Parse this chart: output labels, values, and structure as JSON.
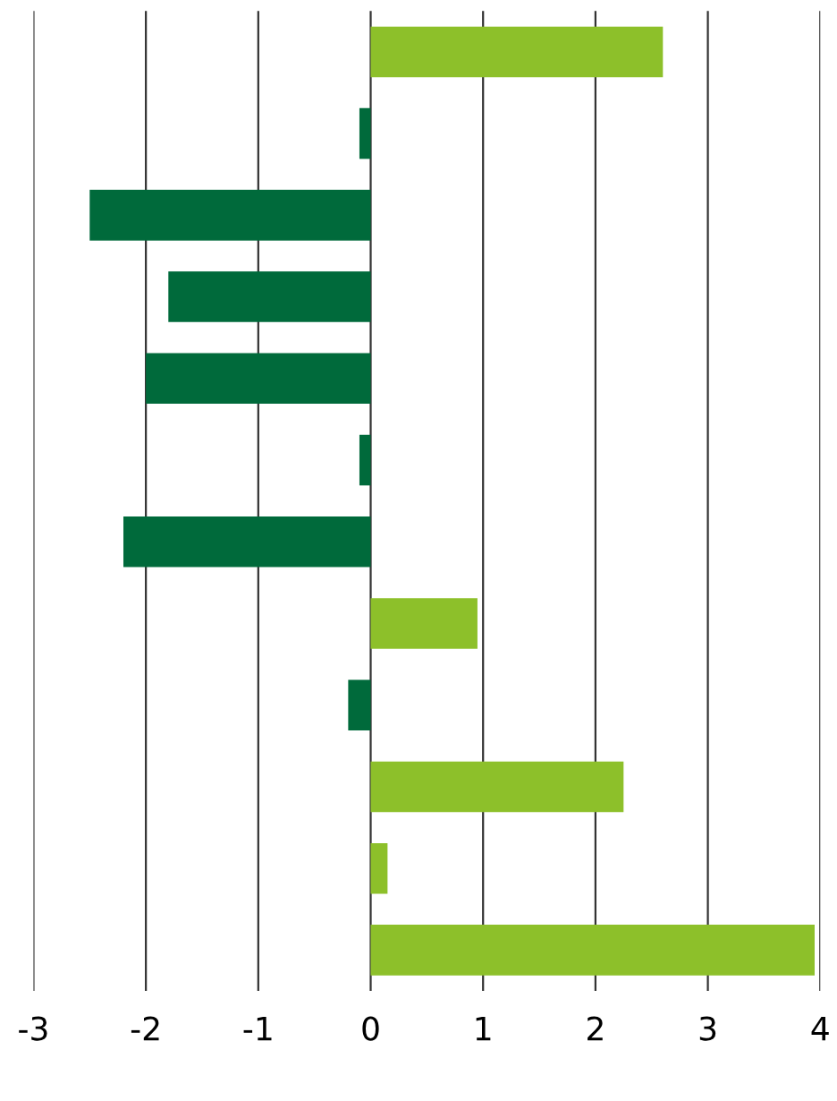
{
  "chart_data": {
    "type": "bar",
    "orientation": "horizontal",
    "categories": [
      null,
      null,
      null,
      null,
      null,
      null,
      null,
      null,
      null,
      null,
      null,
      null
    ],
    "values": [
      2.6,
      -0.1,
      -2.5,
      -1.8,
      -2.0,
      -0.1,
      -2.2,
      0.95,
      -0.2,
      2.25,
      0.15,
      3.95
    ],
    "colors": [
      "#8dc02a",
      "#006a3b",
      "#006a3b",
      "#006a3b",
      "#006a3b",
      "#006a3b",
      "#006a3b",
      "#8dc02a",
      "#006a3b",
      "#8dc02a",
      "#8dc02a",
      "#8dc02a"
    ],
    "xlim": [
      -3,
      4
    ],
    "xticks": [
      -3,
      -2,
      -1,
      0,
      1,
      2,
      3,
      4
    ],
    "grid": "x"
  }
}
